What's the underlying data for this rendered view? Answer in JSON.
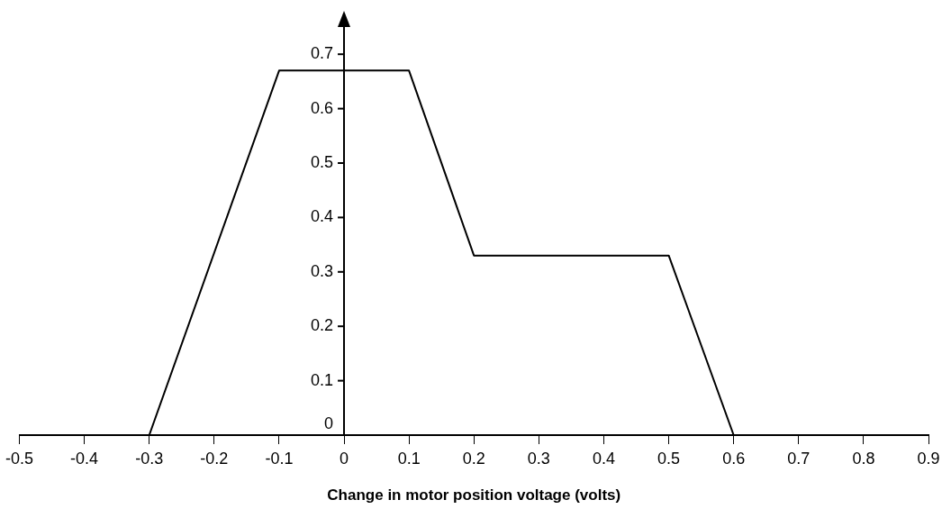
{
  "chart_data": {
    "type": "line",
    "xlabel": "Change in motor position voltage (volts)",
    "x": [
      -0.3,
      -0.1,
      0.1,
      0.2,
      0.5,
      0.6
    ],
    "values": [
      0,
      0.67,
      0.67,
      0.33,
      0.33,
      0
    ],
    "color": "#000000",
    "marker": "none",
    "line_style": "solid",
    "xlim": [
      -0.5,
      0.9
    ],
    "xticks": [
      -0.5,
      -0.4,
      -0.3,
      -0.2,
      -0.1,
      0,
      0.1,
      0.2,
      0.3,
      0.4,
      0.5,
      0.6,
      0.7,
      0.8,
      0.9
    ],
    "ylim": [
      0,
      0.75
    ],
    "yticks": [
      0,
      0.1,
      0.2,
      0.3,
      0.4,
      0.5,
      0.6,
      0.7
    ]
  }
}
